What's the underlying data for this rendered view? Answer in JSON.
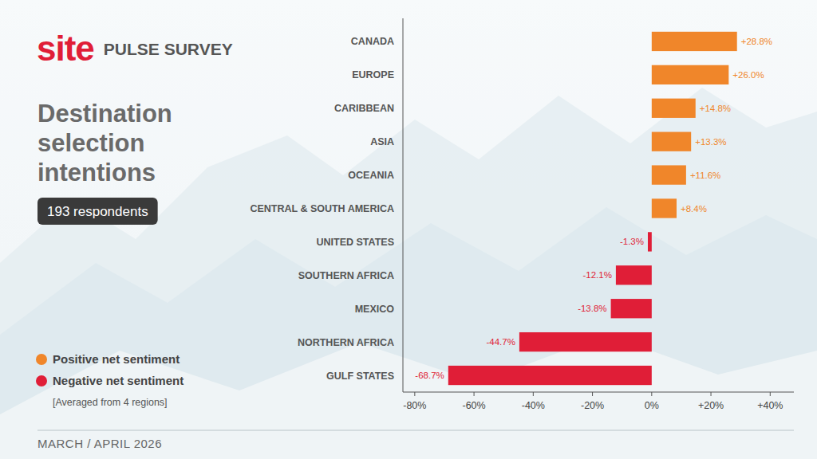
{
  "chart_data": {
    "type": "bar",
    "orientation": "horizontal",
    "title": "Destination selection intentions",
    "annotations": {
      "logo": "site",
      "header": "PULSE SURVEY",
      "respondents": "193 respondents",
      "note": "[Averaged from 4 regions]",
      "date": "MARCH / APRIL 2026"
    },
    "categories": [
      "CANADA",
      "EUROPE",
      "CARIBBEAN",
      "ASIA",
      "OCEANIA",
      "CENTRAL & SOUTH AMERICA",
      "UNITED STATES",
      "SOUTHERN AFRICA",
      "MEXICO",
      "NORTHERN AFRICA",
      "GULF STATES"
    ],
    "series": [
      {
        "name": "Positive net sentiment",
        "color": "#f0862a",
        "values": [
          28.8,
          26.0,
          14.8,
          13.3,
          11.6,
          8.4,
          null,
          null,
          null,
          null,
          null
        ],
        "value_labels": [
          "+28.8%",
          "+26.0%",
          "+14.8%",
          "+13.3%",
          "+11.6%",
          "+8.4%",
          null,
          null,
          null,
          null,
          null
        ]
      },
      {
        "name": "Negative net sentiment",
        "color": "#e01e37",
        "values": [
          null,
          null,
          null,
          null,
          null,
          null,
          -1.3,
          -12.1,
          -13.8,
          -44.7,
          -68.7
        ],
        "value_labels": [
          null,
          null,
          null,
          null,
          null,
          null,
          "-1.3%",
          "-12.1%",
          "-13.8%",
          "-44.7%",
          "-68.7%"
        ]
      }
    ],
    "xlim": [
      -84,
      48
    ],
    "xticks": [
      {
        "value": -80,
        "label": "-80%"
      },
      {
        "value": -60,
        "label": "-60%"
      },
      {
        "value": -40,
        "label": "-40%"
      },
      {
        "value": -20,
        "label": "-20%"
      },
      {
        "value": 0,
        "label": "0%"
      },
      {
        "value": 20,
        "label": "+20%"
      },
      {
        "value": 40,
        "label": "+40%"
      }
    ],
    "grid": false,
    "data_labels": true,
    "legend": "left"
  }
}
